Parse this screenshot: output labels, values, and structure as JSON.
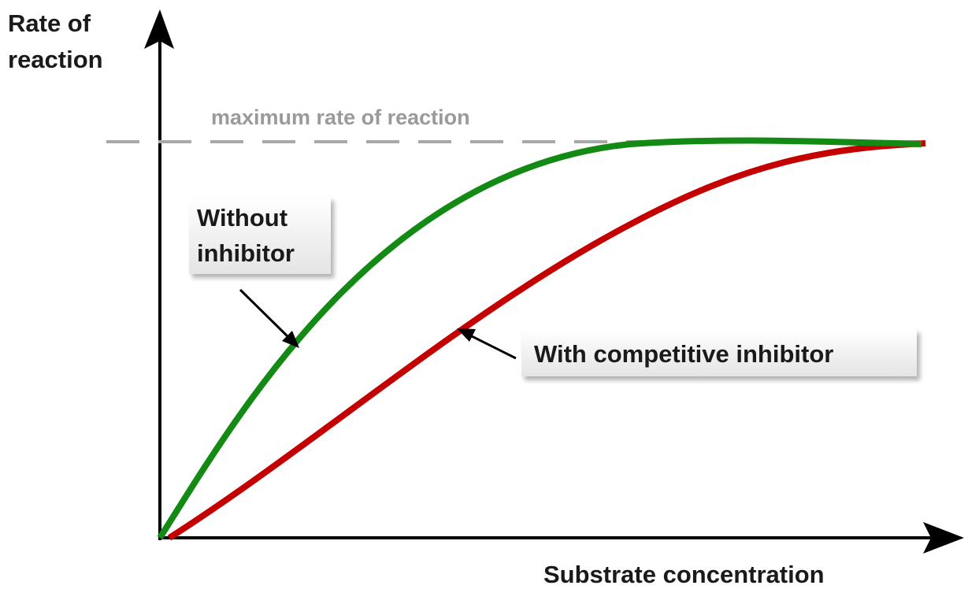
{
  "y_axis_label": [
    "Rate of",
    "reaction"
  ],
  "x_axis_label": "Substrate concentration",
  "max_line_label": "maximum rate of reaction",
  "curves": [
    {
      "label": [
        "Without",
        "inhibitor"
      ]
    },
    {
      "label": [
        "With competitive inhibitor"
      ]
    }
  ]
}
